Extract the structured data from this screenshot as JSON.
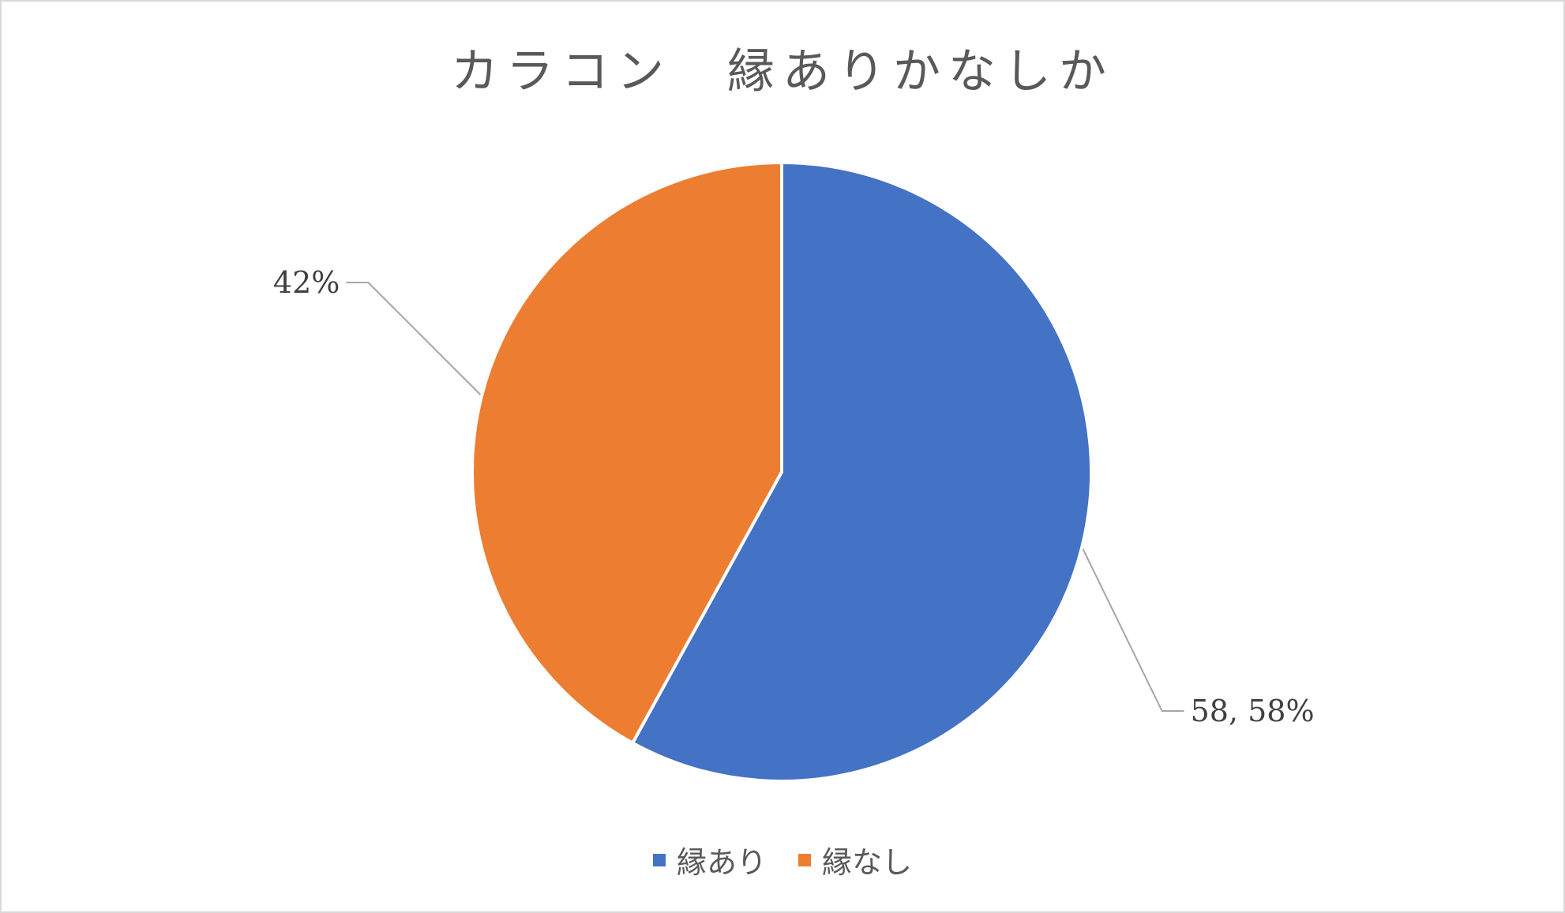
{
  "chart_data": {
    "type": "pie",
    "title": "カラコン　縁ありかなしか",
    "categories": [
      "縁あり",
      "縁なし"
    ],
    "values": [
      58,
      42
    ],
    "percentages": [
      58,
      42
    ],
    "data_labels": [
      "58, 58%",
      "42%"
    ],
    "colors": [
      "#4472C4",
      "#ED7D31"
    ],
    "legend_position": "bottom",
    "start_angle": "top, clockwise"
  }
}
